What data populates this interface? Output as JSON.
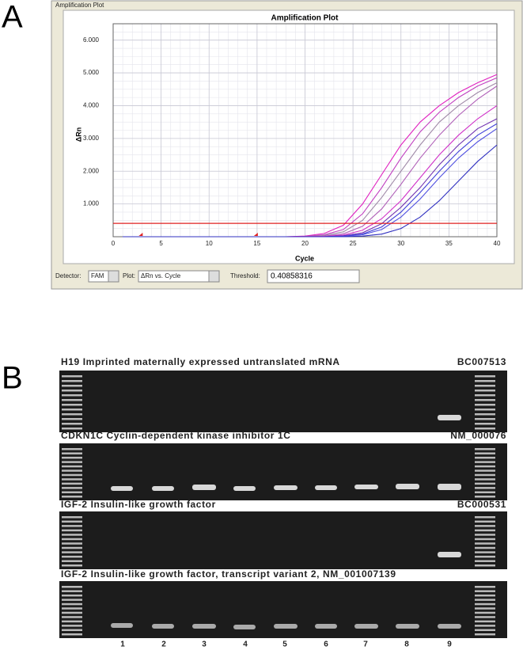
{
  "panel_labels": [
    "A",
    "B"
  ],
  "window_title": "Amplification Plot",
  "chart_data": {
    "type": "line",
    "title": "Amplification Plot",
    "x_label": "Cycle",
    "y_label": "ΔRn",
    "x": [
      1,
      18,
      20,
      22,
      24,
      26,
      28,
      30,
      32,
      34,
      36,
      38,
      40
    ],
    "series": [
      {
        "color": "#e020c0",
        "values": [
          0,
          0,
          0.02,
          0.1,
          0.35,
          1.0,
          1.9,
          2.8,
          3.5,
          4.0,
          4.4,
          4.7,
          4.95
        ]
      },
      {
        "color": "#c040c0",
        "values": [
          0,
          0,
          0.01,
          0.06,
          0.22,
          0.7,
          1.5,
          2.4,
          3.2,
          3.8,
          4.25,
          4.6,
          4.85
        ]
      },
      {
        "color": "#a08aa8",
        "values": [
          0,
          0,
          0,
          0.04,
          0.15,
          0.5,
          1.2,
          2.0,
          2.8,
          3.5,
          4.0,
          4.4,
          4.7
        ]
      },
      {
        "color": "#b060b8",
        "values": [
          0,
          0,
          0,
          0.02,
          0.09,
          0.32,
          0.85,
          1.6,
          2.4,
          3.1,
          3.7,
          4.2,
          4.6
        ]
      },
      {
        "color": "#d030c8",
        "values": [
          0,
          0,
          0,
          0.01,
          0.05,
          0.2,
          0.55,
          1.1,
          1.8,
          2.5,
          3.1,
          3.6,
          4.0
        ]
      },
      {
        "color": "#7030b0",
        "values": [
          0,
          0,
          0,
          0,
          0.03,
          0.12,
          0.4,
          0.9,
          1.5,
          2.2,
          2.8,
          3.3,
          3.6
        ]
      },
      {
        "color": "#4040d8",
        "values": [
          0,
          0,
          0,
          0,
          0.02,
          0.08,
          0.3,
          0.75,
          1.35,
          2.0,
          2.6,
          3.1,
          3.45
        ]
      },
      {
        "color": "#5050e0",
        "values": [
          0,
          0,
          0,
          0,
          0.01,
          0.06,
          0.22,
          0.6,
          1.15,
          1.8,
          2.4,
          2.9,
          3.3
        ]
      },
      {
        "color": "#3030c0",
        "values": [
          0,
          0,
          0,
          0,
          0,
          0.02,
          0.08,
          0.25,
          0.6,
          1.1,
          1.7,
          2.3,
          2.8
        ]
      }
    ],
    "xlim": [
      0,
      40
    ],
    "xticks": [
      0,
      5,
      10,
      15,
      20,
      25,
      30,
      35,
      40
    ],
    "ylim": [
      0,
      6.5
    ],
    "yticks": [
      {
        "value": 1,
        "label": "1.000"
      },
      {
        "value": 2,
        "label": "2.000"
      },
      {
        "value": 3,
        "label": "3.000"
      },
      {
        "value": 4,
        "label": "4.000"
      },
      {
        "value": 5,
        "label": "5.000"
      },
      {
        "value": 6,
        "label": "6.000"
      }
    ],
    "grid": true,
    "threshold": {
      "value": 0.40858316,
      "label": "0.40858316",
      "color": "#e02020"
    },
    "baseline_markers": [
      3,
      15
    ]
  },
  "controls": {
    "detector_label": "Detector:",
    "detector": "FAM",
    "plot_label": "Plot:",
    "plot": "ΔRn vs. Cycle",
    "threshold_label": "Threshold:"
  },
  "gels": [
    {
      "title": "H19 Imprinted maternally expressed untranslated mRNA",
      "accession": "BC007513"
    },
    {
      "title": "CDKN1C  Cyclin-dependent kinase inhibitor 1C",
      "accession": "NM_000076"
    },
    {
      "title": "IGF-2 Insulin-like growth factor",
      "accession": "BC000531"
    },
    {
      "title": "IGF-2  Insulin-like growth factor, transcript variant 2, NM_001007139"
    }
  ],
  "lane_labels": [
    "1",
    "2",
    "3",
    "4",
    "5",
    "6",
    "7",
    "8",
    "9"
  ]
}
